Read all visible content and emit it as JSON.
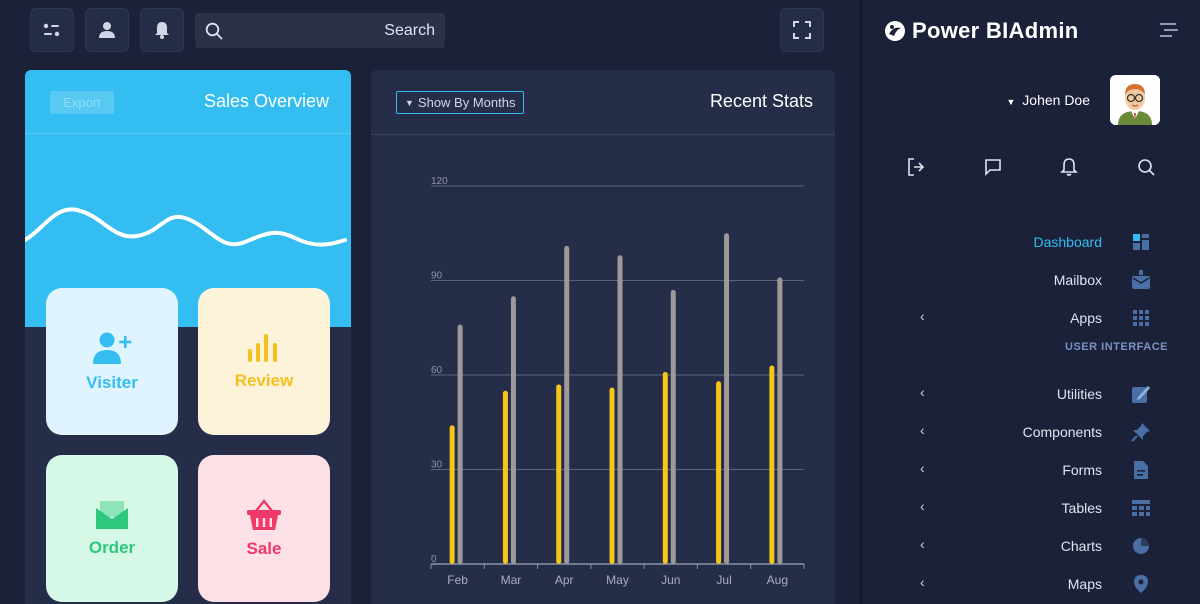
{
  "topbar": {
    "search_label": "Search"
  },
  "sales_card": {
    "export_label": "Export",
    "title": "Sales Overview",
    "tiles": [
      {
        "label": "Visiter",
        "icon": "user-plus-icon",
        "color": "#33bdf0"
      },
      {
        "label": "Review",
        "icon": "bar-chart-icon",
        "color": "#f4c01d"
      },
      {
        "label": "Order",
        "icon": "mail-icon",
        "color": "#2ec77b"
      },
      {
        "label": "Sale",
        "icon": "basket-icon",
        "color": "#f0396b"
      }
    ]
  },
  "stats_card": {
    "filter_label": "Show By Months",
    "title": "Recent Stats"
  },
  "chart_data": {
    "type": "bar",
    "categories": [
      "Feb",
      "Mar",
      "Apr",
      "May",
      "Jun",
      "Jul",
      "Aug"
    ],
    "series": [
      {
        "values": [
          44,
          55,
          57,
          56,
          61,
          58,
          63
        ],
        "color": "#f5c518"
      },
      {
        "values": [
          76,
          85,
          101,
          98,
          87,
          105,
          91
        ],
        "color": "#9e9a9a"
      }
    ],
    "yticks": [
      "0",
      "30",
      "60",
      "90",
      "120"
    ],
    "ylim": [
      0,
      120
    ],
    "grid": true
  },
  "sidebar": {
    "brand": "Power BIAdmin",
    "user_name": "Johen Doe",
    "icons": [
      "logout-icon",
      "chat-icon",
      "bell-icon",
      "search-icon"
    ],
    "section_label": "USER INTERFACE",
    "items": [
      {
        "label": "Dashboard",
        "icon": "dashboard-icon",
        "active": true
      },
      {
        "label": "Mailbox",
        "icon": "mailbox-icon"
      },
      {
        "label": "Apps",
        "icon": "apps-icon",
        "chevron": true
      },
      {
        "label": "Utilities",
        "icon": "edit-icon",
        "chevron": true
      },
      {
        "label": "Components",
        "icon": "pin-icon",
        "chevron": true
      },
      {
        "label": "Forms",
        "icon": "file-icon",
        "chevron": true
      },
      {
        "label": "Tables",
        "icon": "table-icon",
        "chevron": true
      },
      {
        "label": "Charts",
        "icon": "pie-icon",
        "chevron": true
      },
      {
        "label": "Maps",
        "icon": "map-pin-icon",
        "chevron": true
      }
    ],
    "active_color": "#33bdf0"
  }
}
